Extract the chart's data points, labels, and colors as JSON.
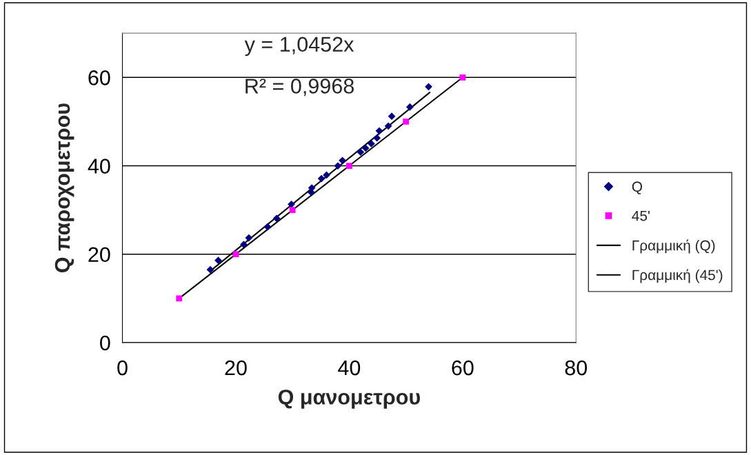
{
  "chart_data": {
    "type": "scatter",
    "xlabel": "Q μανομετρου",
    "ylabel": "Q παροχομετρου",
    "xlim": [
      0,
      80
    ],
    "xticks": [
      0,
      20,
      40,
      60,
      80
    ],
    "ylim": [
      0,
      70
    ],
    "yticks": [
      0,
      20,
      40,
      60
    ],
    "grid": "y",
    "legend": "right",
    "series": [
      {
        "name": "Q",
        "marker": "diamond",
        "color": "#000080",
        "x": [
          15.5,
          16.9,
          21.4,
          22.3,
          25.6,
          27.2,
          29.8,
          33.3,
          33.4,
          35.1,
          36.0,
          38.0,
          38.8,
          42.0,
          42.9,
          43.9,
          44.9,
          45.3,
          46.9,
          47.5,
          50.7,
          54.0
        ],
        "values": [
          16.5,
          18.6,
          22.2,
          23.7,
          26.2,
          28.1,
          31.3,
          34.0,
          35.0,
          37.1,
          37.9,
          40.0,
          41.2,
          43.1,
          44.0,
          45.0,
          46.3,
          47.9,
          49.0,
          51.2,
          53.3,
          57.9
        ]
      },
      {
        "name": "45'",
        "marker": "square",
        "color": "#ff00ff",
        "x": [
          10,
          20,
          30,
          40,
          50,
          60
        ],
        "values": [
          10,
          20,
          30,
          40,
          50,
          60
        ]
      },
      {
        "name": "Γραμμική (Q)",
        "type": "line",
        "marker": "none",
        "color": "#000000",
        "x": [
          15.5,
          54.2
        ],
        "values": [
          16.2,
          56.6
        ]
      },
      {
        "name": "Γραμμική (45')",
        "type": "line",
        "marker": "none",
        "color": "#000000",
        "x": [
          10,
          60
        ],
        "values": [
          10,
          60
        ]
      }
    ],
    "annotations": [
      "y = 1,0452x",
      "R² = 0,9968"
    ]
  }
}
